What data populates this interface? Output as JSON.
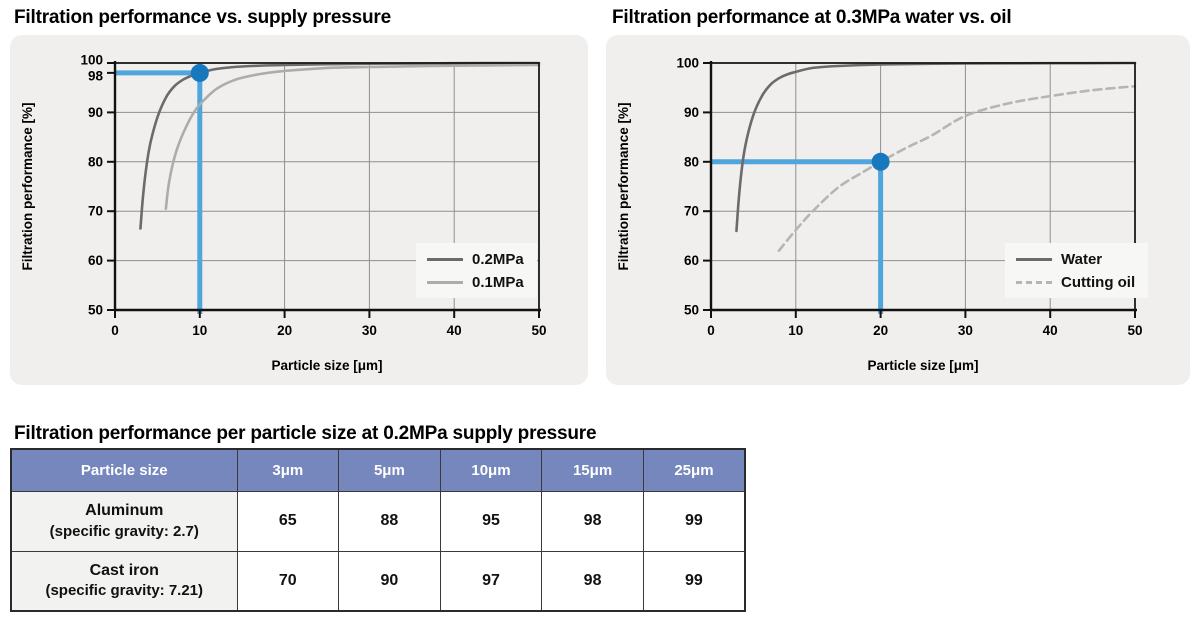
{
  "colors": {
    "panel_bg": "#f0efee",
    "table_header_bg": "#7687bd",
    "accent_line": "#4fa6dc",
    "accent_dot": "#1878be",
    "frame": "#1a1a1a",
    "grid": "#8f8f8f"
  },
  "chart_data": [
    {
      "type": "line",
      "title": "Filtration performance vs. supply pressure",
      "xlabel": "Particle size [μm]",
      "ylabel": "Filtration performance [%]",
      "xlim": [
        0,
        50
      ],
      "ylim": [
        50,
        100
      ],
      "xticks": [
        0,
        10,
        20,
        30,
        40,
        50
      ],
      "yticks": [
        50,
        60,
        70,
        80,
        90,
        100
      ],
      "extra_ytick": 98,
      "grid": true,
      "legend_position": "lower-right",
      "series": [
        {
          "name": "0.2MPa",
          "color": "#6b6b6b",
          "dash": null,
          "points": [
            [
              3,
              66.5
            ],
            [
              3.3,
              73
            ],
            [
              3.7,
              79
            ],
            [
              4.2,
              84
            ],
            [
              5,
              89
            ],
            [
              6,
              93
            ],
            [
              7,
              95.3
            ],
            [
              8,
              96.6
            ],
            [
              9,
              97.4
            ],
            [
              10,
              98
            ],
            [
              12,
              98.8
            ],
            [
              15,
              99.3
            ],
            [
              20,
              99.6
            ],
            [
              25,
              99.75
            ],
            [
              30,
              99.85
            ],
            [
              40,
              99.95
            ],
            [
              50,
              100
            ]
          ]
        },
        {
          "name": "0.1MPa",
          "color": "#acacac",
          "dash": null,
          "points": [
            [
              6,
              70.5
            ],
            [
              6.3,
              75
            ],
            [
              6.8,
              79.5
            ],
            [
              7.5,
              83.5
            ],
            [
              8.5,
              87.5
            ],
            [
              9.5,
              90.5
            ],
            [
              10.5,
              92.5
            ],
            [
              12,
              94.8
            ],
            [
              14,
              96.5
            ],
            [
              16,
              97.4
            ],
            [
              18,
              98
            ],
            [
              20,
              98.4
            ],
            [
              25,
              99
            ],
            [
              30,
              99.2
            ],
            [
              40,
              99.45
            ],
            [
              50,
              99.6
            ]
          ]
        }
      ],
      "annotation": {
        "x": 10,
        "y": 98,
        "line_color": "#4fa6dc",
        "dot_color": "#1878be"
      }
    },
    {
      "type": "line",
      "title": "Filtration performance at 0.3MPa water vs. oil",
      "xlabel": "Particle size [μm]",
      "ylabel": "Filtration performance [%]",
      "xlim": [
        0,
        50
      ],
      "ylim": [
        50,
        100
      ],
      "xticks": [
        0,
        10,
        20,
        30,
        40,
        50
      ],
      "yticks": [
        50,
        60,
        70,
        80,
        90,
        100
      ],
      "extra_ytick": null,
      "grid": true,
      "legend_position": "lower-right",
      "series": [
        {
          "name": "Water",
          "color": "#6b6b6b",
          "dash": null,
          "points": [
            [
              3,
              66
            ],
            [
              3.3,
              73
            ],
            [
              3.7,
              79.5
            ],
            [
              4.2,
              84.5
            ],
            [
              5,
              89.5
            ],
            [
              6,
              93.3
            ],
            [
              7,
              95.6
            ],
            [
              8,
              96.9
            ],
            [
              9,
              97.7
            ],
            [
              10,
              98.2
            ],
            [
              12,
              99
            ],
            [
              15,
              99.4
            ],
            [
              20,
              99.7
            ],
            [
              30,
              99.9
            ],
            [
              40,
              99.95
            ],
            [
              50,
              100
            ]
          ]
        },
        {
          "name": "Cutting oil",
          "color": "#b5b5b5",
          "dash": "8 5",
          "points": [
            [
              8,
              62
            ],
            [
              10,
              66.2
            ],
            [
              12,
              70
            ],
            [
              15,
              74.8
            ],
            [
              18,
              78
            ],
            [
              20,
              80
            ],
            [
              23,
              82.8
            ],
            [
              26,
              85.3
            ],
            [
              30,
              89.3
            ],
            [
              35,
              91.8
            ],
            [
              40,
              93.3
            ],
            [
              45,
              94.5
            ],
            [
              50,
              95.3
            ]
          ]
        }
      ],
      "annotation": {
        "x": 20,
        "y": 80,
        "line_color": "#4fa6dc",
        "dot_color": "#1878be"
      }
    },
    {
      "type": "table",
      "title": "Filtration performance per particle size at 0.2MPa supply pressure",
      "columns": [
        "Particle size",
        "3μm",
        "5μm",
        "10μm",
        "15μm",
        "25μm"
      ],
      "rows": [
        {
          "label": "Aluminum",
          "sublabel": "(specific gravity: 2.7)",
          "values": [
            65,
            88,
            95,
            98,
            99
          ]
        },
        {
          "label": "Cast iron",
          "sublabel": "(specific gravity: 7.21)",
          "values": [
            70,
            90,
            97,
            98,
            99
          ]
        }
      ]
    }
  ]
}
